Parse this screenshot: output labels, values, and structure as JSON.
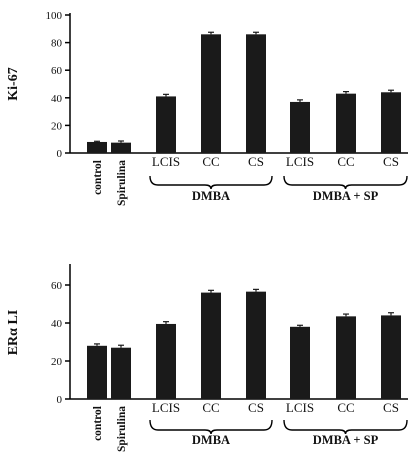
{
  "colors": {
    "bar": "#1a1a1a",
    "axis": "#000000"
  },
  "chart_data": [
    {
      "type": "bar",
      "ylabel": "Ki-67",
      "ylim": [
        0,
        100
      ],
      "yticks": [
        0,
        20,
        40,
        60,
        80,
        100
      ],
      "categories": [
        "control",
        "Spirulina",
        "LCIS",
        "CC",
        "CS",
        "LCIS",
        "CC",
        "CS"
      ],
      "values": [
        8,
        7.5,
        41,
        86,
        86,
        37,
        43,
        44
      ],
      "errors": [
        0.5,
        1.2,
        1.5,
        1.5,
        1.5,
        1.5,
        1.5,
        1.5
      ],
      "groups": [
        {
          "label": "DMBA",
          "members": [
            2,
            3,
            4
          ]
        },
        {
          "label": "DMBA + SP",
          "members": [
            5,
            6,
            7
          ]
        }
      ],
      "grid": false
    },
    {
      "type": "bar",
      "ylabel": "ERα LI",
      "ylim": [
        0,
        70
      ],
      "yticks": [
        0,
        20,
        40,
        60
      ],
      "categories": [
        "control",
        "Spirulina",
        "LCIS",
        "CC",
        "CS",
        "LCIS",
        "CC",
        "CS"
      ],
      "values": [
        28,
        27,
        39.5,
        56,
        56.5,
        38,
        43.5,
        44
      ],
      "errors": [
        1.0,
        1.3,
        1.2,
        1.2,
        1.2,
        0.8,
        1.2,
        1.4
      ],
      "groups": [
        {
          "label": "DMBA",
          "members": [
            2,
            3,
            4
          ]
        },
        {
          "label": "DMBA + SP",
          "members": [
            5,
            6,
            7
          ]
        }
      ],
      "grid": false
    }
  ]
}
